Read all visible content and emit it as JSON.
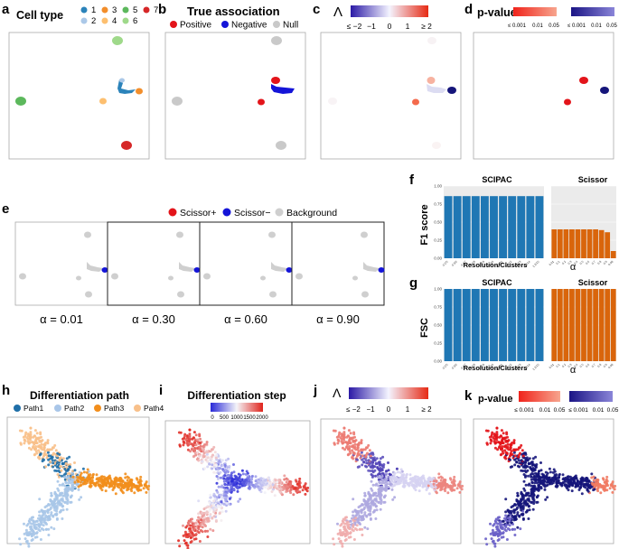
{
  "colors": {
    "ct": [
      "#2b83ba",
      "#abc8e8",
      "#f28e2b",
      "#fdbf6f",
      "#5cb85c",
      "#9fd98a",
      "#d62728"
    ],
    "positive": "#e3141a",
    "negative": "#1414d8",
    "null": "#c9c9c9",
    "scissor_pos": "#e3141a",
    "scissor_neg": "#1414d8",
    "background": "#cfcfcf",
    "bar_blue": "#1f77b4",
    "bar_orange": "#d9650b",
    "path": [
      "#1f6fa8",
      "#a9c6e8",
      "#f28e1c",
      "#f8c08a"
    ]
  },
  "panel_a": {
    "letter": "a",
    "title": "Cell type",
    "legend_row1": [
      "1",
      "3",
      "5",
      "7"
    ],
    "legend_row2": [
      "2",
      "4",
      "6"
    ]
  },
  "panel_b": {
    "letter": "b",
    "title": "True association",
    "legend": [
      "Positive",
      "Negative",
      "Null"
    ]
  },
  "panel_c": {
    "letter": "c",
    "symbol": "Λ",
    "scale_ticks": [
      "≤ −2",
      "−1",
      "0",
      "1",
      "≥ 2"
    ]
  },
  "panel_d": {
    "letter": "d",
    "title": "p-value",
    "red_ticks": [
      "≤ 0.001",
      "0.01",
      "0.05"
    ],
    "blue_ticks": [
      "≤ 0.001",
      "0.01",
      "0.05"
    ]
  },
  "panel_e": {
    "letter": "e",
    "legend": [
      "Scissor+",
      "Scissor−",
      "Background"
    ],
    "alpha_labels": [
      "α = 0.01",
      "α = 0.30",
      "α = 0.60",
      "α = 0.90"
    ]
  },
  "panel_f": {
    "letter": "f",
    "ylabel": "F1 score",
    "left_title": "SCIPAC",
    "right_title": "Scissor",
    "left_xlabel": "Resolution/Clusters",
    "right_xlabel": "α",
    "yticks": [
      "0.00",
      "0.25",
      "0.50",
      "0.75",
      "1.00"
    ]
  },
  "panel_g": {
    "letter": "g",
    "ylabel": "FSC",
    "left_title": "SCIPAC",
    "right_title": "Scissor",
    "left_xlabel": "Resolution/Clusters",
    "right_xlabel": "α",
    "yticks": [
      "0.00",
      "0.25",
      "0.50",
      "0.75",
      "1.00"
    ]
  },
  "panel_h": {
    "letter": "h",
    "title": "Differentiation path",
    "legend": [
      "Path1",
      "Path2",
      "Path3",
      "Path4"
    ]
  },
  "panel_i": {
    "letter": "i",
    "title": "Differentiation step",
    "ticks": [
      "0",
      "500",
      "1000",
      "1500",
      "2000"
    ]
  },
  "panel_j": {
    "letter": "j",
    "symbol": "Λ",
    "scale_ticks": [
      "≤ −2",
      "−1",
      "0",
      "1",
      "≥ 2"
    ]
  },
  "panel_k": {
    "letter": "k",
    "title": "p-value",
    "red_ticks": [
      "≤ 0.001",
      "0.01",
      "0.05"
    ],
    "blue_ticks": [
      "≤ 0.001",
      "0.01",
      "0.05"
    ]
  },
  "chart_data": [
    {
      "panel": "f-left",
      "type": "bar",
      "title": "SCIPAC",
      "ylabel": "F1 score",
      "xlabel": "Resolution/Clusters",
      "ylim": [
        0,
        1
      ],
      "categories": [
        "0.2/5",
        "0.3/6",
        "0.4/7",
        "0.5/8",
        "0.6/9",
        "0.7/10",
        "0.8/11",
        "0.9/12",
        "1.0/13",
        "1.1/14",
        "1.2/15"
      ],
      "values": [
        0.86,
        0.86,
        0.86,
        0.86,
        0.86,
        0.86,
        0.86,
        0.86,
        0.86,
        0.86,
        0.86
      ]
    },
    {
      "panel": "f-right",
      "type": "bar",
      "title": "Scissor",
      "ylabel": "F1 score",
      "xlabel": "α",
      "ylim": [
        0,
        1
      ],
      "categories": [
        "0.01",
        "0.1",
        "0.2",
        "0.3",
        "0.4",
        "0.5",
        "0.6",
        "0.7",
        "0.8",
        "0.9",
        "0.98"
      ],
      "values": [
        0.4,
        0.4,
        0.4,
        0.4,
        0.4,
        0.4,
        0.4,
        0.4,
        0.39,
        0.36,
        0.1
      ]
    },
    {
      "panel": "g-left",
      "type": "bar",
      "title": "SCIPAC",
      "ylabel": "FSC",
      "xlabel": "Resolution/Clusters",
      "ylim": [
        0,
        1
      ],
      "categories": [
        "0.2/5",
        "0.3/6",
        "0.4/7",
        "0.5/8",
        "0.6/9",
        "0.7/10",
        "0.8/11",
        "0.9/12",
        "1.0/13",
        "1.1/14",
        "1.2/15"
      ],
      "values": [
        1,
        1,
        1,
        1,
        1,
        1,
        1,
        1,
        1,
        1,
        1
      ]
    },
    {
      "panel": "g-right",
      "type": "bar",
      "title": "Scissor",
      "ylabel": "FSC",
      "xlabel": "α",
      "ylim": [
        0,
        1
      ],
      "categories": [
        "0.01",
        "0.1",
        "0.2",
        "0.3",
        "0.4",
        "0.5",
        "0.6",
        "0.7",
        "0.8",
        "0.9",
        "0.98"
      ],
      "values": [
        1,
        1,
        1,
        1,
        1,
        1,
        1,
        1,
        1,
        1,
        1
      ]
    }
  ]
}
